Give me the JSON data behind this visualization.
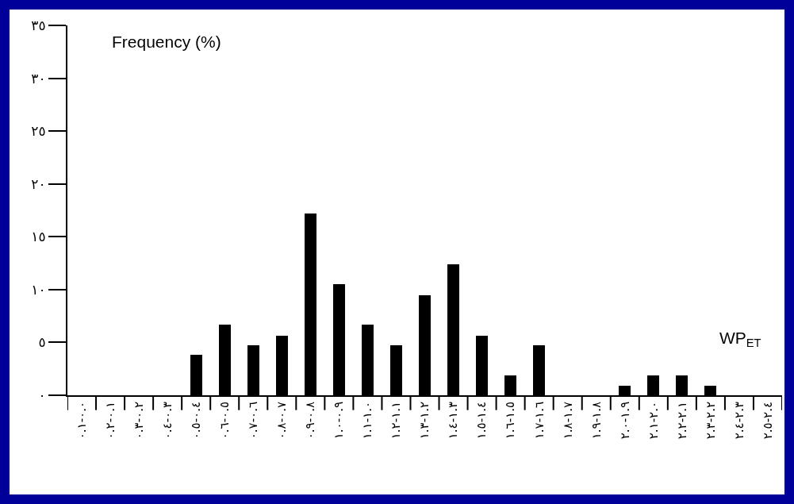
{
  "chart_data": {
    "type": "bar",
    "ylabel": "Frequency (%)",
    "categories": [
      "٠.٠-٠.١",
      "٠.١-٠.٢",
      "٠.٢-٠.٣",
      "٠.٣-٠.٤",
      "٠.٤-٠.٥",
      "٠.٥-٠.٦",
      "٠.٦-٠.٧",
      "٠.٧-٠.٨",
      "٠.٨-٠.٩",
      "٠.٩-١.٠",
      "١.٠-١.١",
      "١.١-١.٢",
      "١.٢-١.٣",
      "١.٣-١.٤",
      "١.٤-١.٥",
      "١.٥-١.٦",
      "١.٦-١.٧",
      "١.٧-١.٨",
      "١.٨-١.٩",
      "١.٩-٢.٠",
      "٢.٠-٢.١",
      "٢.١-٢.٢",
      "٢.٢-٢.٣",
      "٢.٣-٢.٤",
      "٢.٤-٢.٥"
    ],
    "values": [
      0,
      0,
      0,
      0,
      3.8,
      6.7,
      4.7,
      5.6,
      17.2,
      10.5,
      6.7,
      4.7,
      9.5,
      12.4,
      5.6,
      1.9,
      4.7,
      0,
      0,
      0.9,
      1.9,
      1.9,
      0.9,
      0,
      0
    ],
    "color": "#000000",
    "ylim": [
      0,
      35
    ],
    "yticks": [
      {
        "value": 0,
        "label": "٠"
      },
      {
        "value": 5,
        "label": "٥"
      },
      {
        "value": 10,
        "label": "١٠"
      },
      {
        "value": 15,
        "label": "١٥"
      },
      {
        "value": 20,
        "label": "٢٠"
      },
      {
        "value": 25,
        "label": "٢٥"
      },
      {
        "value": 30,
        "label": "٣٠"
      },
      {
        "value": 35,
        "label": "٣٥"
      }
    ],
    "legend": false,
    "annotations": [
      "WP$_{ET}$"
    ]
  }
}
